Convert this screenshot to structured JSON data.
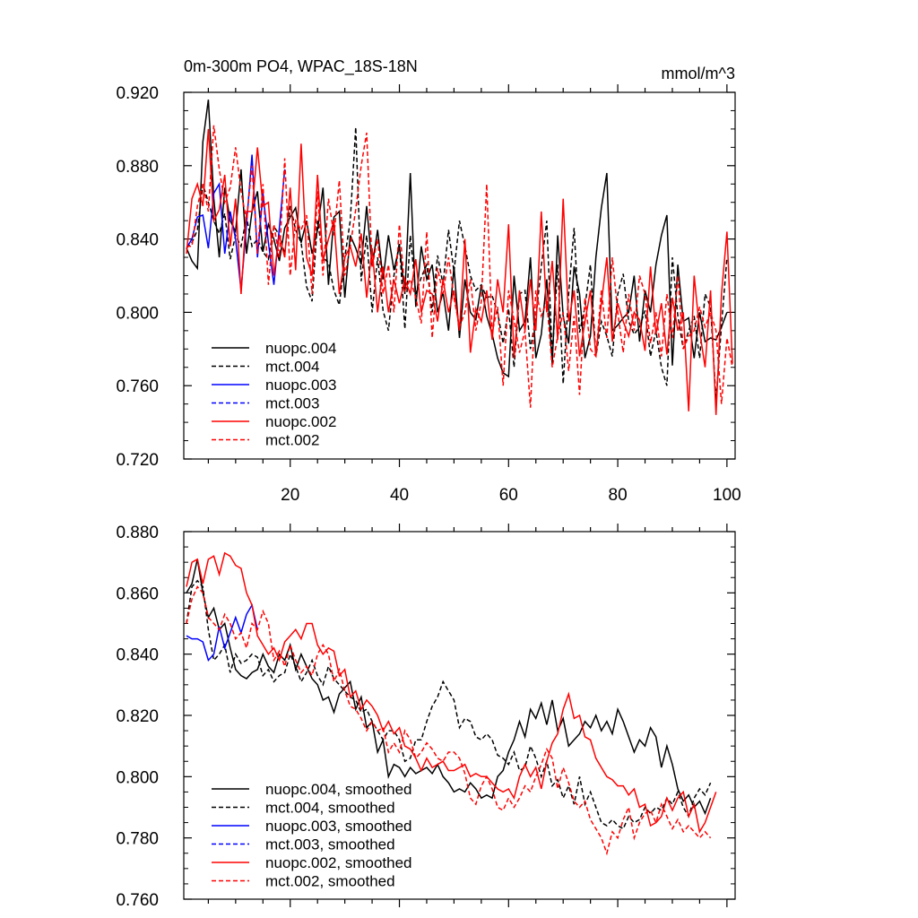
{
  "figure": {
    "title_left": "0m-300m PO4, WPAC_18S-18N",
    "title_right": "mmol/m^3"
  },
  "colors": {
    "black": "#000000",
    "blue": "#0000ff",
    "red": "#ff0000"
  },
  "chart_data": [
    {
      "type": "line",
      "title": "0m-300m PO4, WPAC_18S-18N",
      "units": "mmol/m^3",
      "xlabel": "",
      "ylabel": "",
      "xlim": [
        0.5,
        101.5
      ],
      "ylim": [
        0.72,
        0.92
      ],
      "yticks": [
        "0.720",
        "0.760",
        "0.800",
        "0.840",
        "0.880",
        "0.920"
      ],
      "xticks": [
        "20",
        "40",
        "60",
        "80",
        "100"
      ],
      "series": [
        {
          "name": "nuopc.004",
          "color": "#000000",
          "dash": false,
          "x_start": 1,
          "values": [
            0.835,
            0.828,
            0.824,
            0.893,
            0.916,
            0.862,
            0.83,
            0.868,
            0.85,
            0.844,
            0.878,
            0.832,
            0.855,
            0.866,
            0.833,
            0.848,
            0.84,
            0.828,
            0.846,
            0.852,
            0.857,
            0.838,
            0.85,
            0.832,
            0.845,
            0.868,
            0.815,
            0.852,
            0.855,
            0.808,
            0.842,
            0.835,
            0.826,
            0.858,
            0.825,
            0.845,
            0.818,
            0.842,
            0.823,
            0.836,
            0.81,
            0.876,
            0.803,
            0.836,
            0.818,
            0.826,
            0.8,
            0.811,
            0.79,
            0.825,
            0.786,
            0.818,
            0.8,
            0.796,
            0.815,
            0.798,
            0.788,
            0.775,
            0.767,
            0.765,
            0.82,
            0.79,
            0.795,
            0.83,
            0.775,
            0.788,
            0.818,
            0.772,
            0.842,
            0.798,
            0.783,
            0.825,
            0.81,
            0.775,
            0.787,
            0.83,
            0.857,
            0.876,
            0.79,
            0.793,
            0.797,
            0.8,
            0.82,
            0.784,
            0.812,
            0.8,
            0.826,
            0.842,
            0.853,
            0.771,
            0.826,
            0.795,
            0.797,
            0.775,
            0.8,
            0.784,
            0.786,
            0.785,
            0.792,
            0.8
          ]
        },
        {
          "name": "mct.004",
          "color": "#000000",
          "dash": true,
          "x_start": 1,
          "values": [
            0.835,
            0.838,
            0.845,
            0.87,
            0.86,
            0.85,
            0.843,
            0.854,
            0.829,
            0.842,
            0.836,
            0.852,
            0.836,
            0.84,
            0.833,
            0.829,
            0.847,
            0.842,
            0.832,
            0.858,
            0.845,
            0.838,
            0.814,
            0.806,
            0.85,
            0.83,
            0.827,
            0.812,
            0.804,
            0.83,
            0.85,
            0.901,
            0.817,
            0.842,
            0.8,
            0.83,
            0.801,
            0.79,
            0.82,
            0.838,
            0.791,
            0.842,
            0.81,
            0.819,
            0.826,
            0.8,
            0.831,
            0.815,
            0.845,
            0.822,
            0.85,
            0.836,
            0.82,
            0.812,
            0.815,
            0.808,
            0.809,
            0.8,
            0.783,
            0.802,
            0.77,
            0.81,
            0.812,
            0.78,
            0.797,
            0.825,
            0.85,
            0.776,
            0.826,
            0.761,
            0.81,
            0.846,
            0.789,
            0.803,
            0.826,
            0.776,
            0.795,
            0.787,
            0.776,
            0.81,
            0.821,
            0.795,
            0.788,
            0.792,
            0.801,
            0.776,
            0.79,
            0.77,
            0.76,
            0.83,
            0.798,
            0.78,
            0.79,
            0.798,
            0.775,
            0.81,
            0.803,
            0.752,
            0.793,
            0.83
          ]
        },
        {
          "name": "nuopc.003",
          "color": "#0000ff",
          "dash": false,
          "x_start": 1,
          "values": [
            0.835,
            0.84,
            0.852,
            0.853,
            0.835,
            0.865,
            0.87,
            0.832,
            0.855,
            0.84,
            0.812,
            0.848,
            0.886,
            0.83,
            0.865,
            0.838,
            0.815,
            0.846,
            0.878
          ]
        },
        {
          "name": "mct.003",
          "color": "#0000ff",
          "dash": true,
          "x_start": 1,
          "values": []
        },
        {
          "name": "nuopc.002",
          "color": "#ff0000",
          "dash": false,
          "x_start": 1,
          "values": [
            0.832,
            0.862,
            0.87,
            0.858,
            0.9,
            0.85,
            0.856,
            0.875,
            0.836,
            0.862,
            0.81,
            0.855,
            0.855,
            0.89,
            0.858,
            0.86,
            0.82,
            0.842,
            0.83,
            0.868,
            0.823,
            0.892,
            0.83,
            0.82,
            0.875,
            0.828,
            0.84,
            0.85,
            0.81,
            0.83,
            0.836,
            0.825,
            0.843,
            0.808,
            0.835,
            0.8,
            0.825,
            0.8,
            0.818,
            0.805,
            0.818,
            0.81,
            0.829,
            0.8,
            0.812,
            0.81,
            0.795,
            0.818,
            0.8,
            0.812,
            0.79,
            0.84,
            0.778,
            0.802,
            0.795,
            0.812,
            0.785,
            0.818,
            0.8,
            0.848,
            0.775,
            0.812,
            0.79,
            0.818,
            0.79,
            0.855,
            0.8,
            0.828,
            0.785,
            0.862,
            0.795,
            0.812,
            0.776,
            0.795,
            0.812,
            0.776,
            0.805,
            0.83,
            0.784,
            0.805,
            0.795,
            0.787,
            0.8,
            0.796,
            0.779,
            0.825,
            0.788,
            0.805,
            0.777,
            0.808,
            0.79,
            0.8,
            0.746,
            0.82,
            0.79,
            0.77,
            0.812,
            0.744,
            0.81,
            0.844,
            0.772
          ]
        },
        {
          "name": "mct.002",
          "color": "#ff0000",
          "dash": true,
          "x_start": 1,
          "values": [
            0.836,
            0.836,
            0.858,
            0.87,
            0.855,
            0.902,
            0.878,
            0.86,
            0.868,
            0.89,
            0.866,
            0.85,
            0.88,
            0.832,
            0.87,
            0.815,
            0.848,
            0.83,
            0.884,
            0.82,
            0.85,
            0.845,
            0.853,
            0.81,
            0.866,
            0.82,
            0.862,
            0.842,
            0.872,
            0.82,
            0.836,
            0.856,
            0.88,
            0.898,
            0.825,
            0.84,
            0.81,
            0.826,
            0.8,
            0.848,
            0.812,
            0.818,
            0.808,
            0.794,
            0.844,
            0.786,
            0.824,
            0.81,
            0.83,
            0.808,
            0.792,
            0.8,
            0.818,
            0.79,
            0.806,
            0.87,
            0.789,
            0.803,
            0.76,
            0.812,
            0.796,
            0.778,
            0.79,
            0.748,
            0.812,
            0.798,
            0.806,
            0.77,
            0.787,
            0.8,
            0.768,
            0.798,
            0.755,
            0.808,
            0.78,
            0.776,
            0.812,
            0.786,
            0.83,
            0.8,
            0.778,
            0.81,
            0.79,
            0.82,
            0.81,
            0.783,
            0.8,
            0.776,
            0.81,
            0.786,
            0.82,
            0.78,
            0.787,
            0.79,
            0.803,
            0.792,
            0.8,
            0.79,
            0.75,
            0.786,
            0.77
          ]
        }
      ]
    },
    {
      "type": "line",
      "title": "",
      "xlabel": "",
      "ylabel": "",
      "xlim": [
        0.5,
        101.5
      ],
      "ylim": [
        0.76,
        0.88
      ],
      "yticks": [
        "0.760",
        "0.780",
        "0.800",
        "0.820",
        "0.840",
        "0.860",
        "0.880"
      ],
      "series": [
        {
          "name": "nuopc.004, smoothed",
          "color": "#000000",
          "dash": false,
          "x_start": 1,
          "values": [
            0.86,
            0.863,
            0.871,
            0.86,
            0.852,
            0.855,
            0.848,
            0.85,
            0.842,
            0.835,
            0.833,
            0.832,
            0.834,
            0.835,
            0.84,
            0.836,
            0.834,
            0.84,
            0.838,
            0.843,
            0.835,
            0.84,
            0.836,
            0.832,
            0.83,
            0.825,
            0.826,
            0.821,
            0.827,
            0.829,
            0.831,
            0.822,
            0.826,
            0.816,
            0.818,
            0.808,
            0.812,
            0.8,
            0.804,
            0.803,
            0.8,
            0.803,
            0.801,
            0.802,
            0.803,
            0.801,
            0.804,
            0.8,
            0.798,
            0.795,
            0.796,
            0.795,
            0.798,
            0.796,
            0.793,
            0.794,
            0.793,
            0.8,
            0.802,
            0.808,
            0.812,
            0.818,
            0.813,
            0.822,
            0.819,
            0.824,
            0.817,
            0.825,
            0.815,
            0.819,
            0.81,
            0.812,
            0.814,
            0.818,
            0.816,
            0.82,
            0.815,
            0.818,
            0.814,
            0.822,
            0.818,
            0.813,
            0.808,
            0.812,
            0.81,
            0.816,
            0.813,
            0.803,
            0.81,
            0.804,
            0.796,
            0.792,
            0.794,
            0.79,
            0.792,
            0.788,
            0.793
          ]
        },
        {
          "name": "mct.004, smoothed",
          "color": "#000000",
          "dash": true,
          "x_start": 1,
          "values": [
            0.85,
            0.862,
            0.864,
            0.862,
            0.848,
            0.838,
            0.84,
            0.843,
            0.834,
            0.84,
            0.837,
            0.838,
            0.84,
            0.839,
            0.833,
            0.835,
            0.831,
            0.833,
            0.834,
            0.84,
            0.836,
            0.831,
            0.834,
            0.838,
            0.833,
            0.83,
            0.836,
            0.832,
            0.83,
            0.828,
            0.826,
            0.825,
            0.821,
            0.822,
            0.818,
            0.815,
            0.812,
            0.815,
            0.815,
            0.812,
            0.805,
            0.806,
            0.812,
            0.812,
            0.818,
            0.823,
            0.826,
            0.831,
            0.828,
            0.825,
            0.816,
            0.819,
            0.818,
            0.813,
            0.812,
            0.814,
            0.812,
            0.807,
            0.806,
            0.804,
            0.808,
            0.802,
            0.803,
            0.81,
            0.806,
            0.8,
            0.805,
            0.797,
            0.799,
            0.793,
            0.797,
            0.791,
            0.8,
            0.791,
            0.795,
            0.79,
            0.785,
            0.784,
            0.786,
            0.784,
            0.783,
            0.787,
            0.785,
            0.786,
            0.79,
            0.788,
            0.79,
            0.789,
            0.793,
            0.791,
            0.795,
            0.79,
            0.787,
            0.793,
            0.796,
            0.794,
            0.798
          ]
        },
        {
          "name": "nuopc.003, smoothed",
          "color": "#0000ff",
          "dash": false,
          "x_start": 1,
          "values": [
            0.846,
            0.845,
            0.845,
            0.844,
            0.838,
            0.84,
            0.849,
            0.842,
            0.847,
            0.852,
            0.847,
            0.853,
            0.856,
            0.848
          ]
        },
        {
          "name": "mct.003, smoothed",
          "color": "#0000ff",
          "dash": true,
          "x_start": 1,
          "values": []
        },
        {
          "name": "nuopc.002, smoothed",
          "color": "#ff0000",
          "dash": false,
          "x_start": 1,
          "values": [
            0.862,
            0.87,
            0.871,
            0.863,
            0.871,
            0.872,
            0.866,
            0.873,
            0.872,
            0.869,
            0.868,
            0.86,
            0.856,
            0.846,
            0.843,
            0.84,
            0.842,
            0.838,
            0.844,
            0.846,
            0.848,
            0.845,
            0.85,
            0.85,
            0.843,
            0.84,
            0.842,
            0.841,
            0.833,
            0.835,
            0.826,
            0.828,
            0.822,
            0.825,
            0.823,
            0.82,
            0.815,
            0.818,
            0.814,
            0.816,
            0.81,
            0.809,
            0.806,
            0.802,
            0.806,
            0.803,
            0.804,
            0.805,
            0.802,
            0.802,
            0.803,
            0.804,
            0.8,
            0.801,
            0.8,
            0.8,
            0.798,
            0.796,
            0.795,
            0.796,
            0.793,
            0.8,
            0.804,
            0.8,
            0.803,
            0.796,
            0.805,
            0.811,
            0.814,
            0.822,
            0.827,
            0.819,
            0.82,
            0.813,
            0.812,
            0.806,
            0.803,
            0.8,
            0.799,
            0.797,
            0.797,
            0.794,
            0.796,
            0.79,
            0.791,
            0.784,
            0.785,
            0.787,
            0.793,
            0.789,
            0.793,
            0.795,
            0.787,
            0.791,
            0.782,
            0.785,
            0.79,
            0.795
          ]
        },
        {
          "name": "mct.002, smoothed",
          "color": "#ff0000",
          "dash": true,
          "x_start": 1,
          "values": [
            0.85,
            0.858,
            0.862,
            0.86,
            0.852,
            0.85,
            0.848,
            0.853,
            0.85,
            0.845,
            0.847,
            0.842,
            0.85,
            0.848,
            0.854,
            0.85,
            0.838,
            0.841,
            0.836,
            0.843,
            0.838,
            0.834,
            0.836,
            0.833,
            0.84,
            0.843,
            0.84,
            0.831,
            0.835,
            0.828,
            0.823,
            0.822,
            0.819,
            0.815,
            0.818,
            0.815,
            0.816,
            0.808,
            0.811,
            0.808,
            0.815,
            0.812,
            0.806,
            0.808,
            0.811,
            0.809,
            0.806,
            0.805,
            0.808,
            0.808,
            0.806,
            0.801,
            0.793,
            0.791,
            0.797,
            0.8,
            0.796,
            0.79,
            0.789,
            0.793,
            0.79,
            0.793,
            0.797,
            0.795,
            0.8,
            0.804,
            0.809,
            0.806,
            0.796,
            0.803,
            0.798,
            0.792,
            0.79,
            0.792,
            0.786,
            0.783,
            0.78,
            0.775,
            0.782,
            0.78,
            0.786,
            0.79,
            0.78,
            0.785,
            0.788,
            0.789,
            0.785,
            0.791,
            0.787,
            0.783,
            0.786,
            0.782,
            0.784,
            0.782,
            0.78,
            0.782,
            0.78
          ]
        }
      ]
    }
  ]
}
